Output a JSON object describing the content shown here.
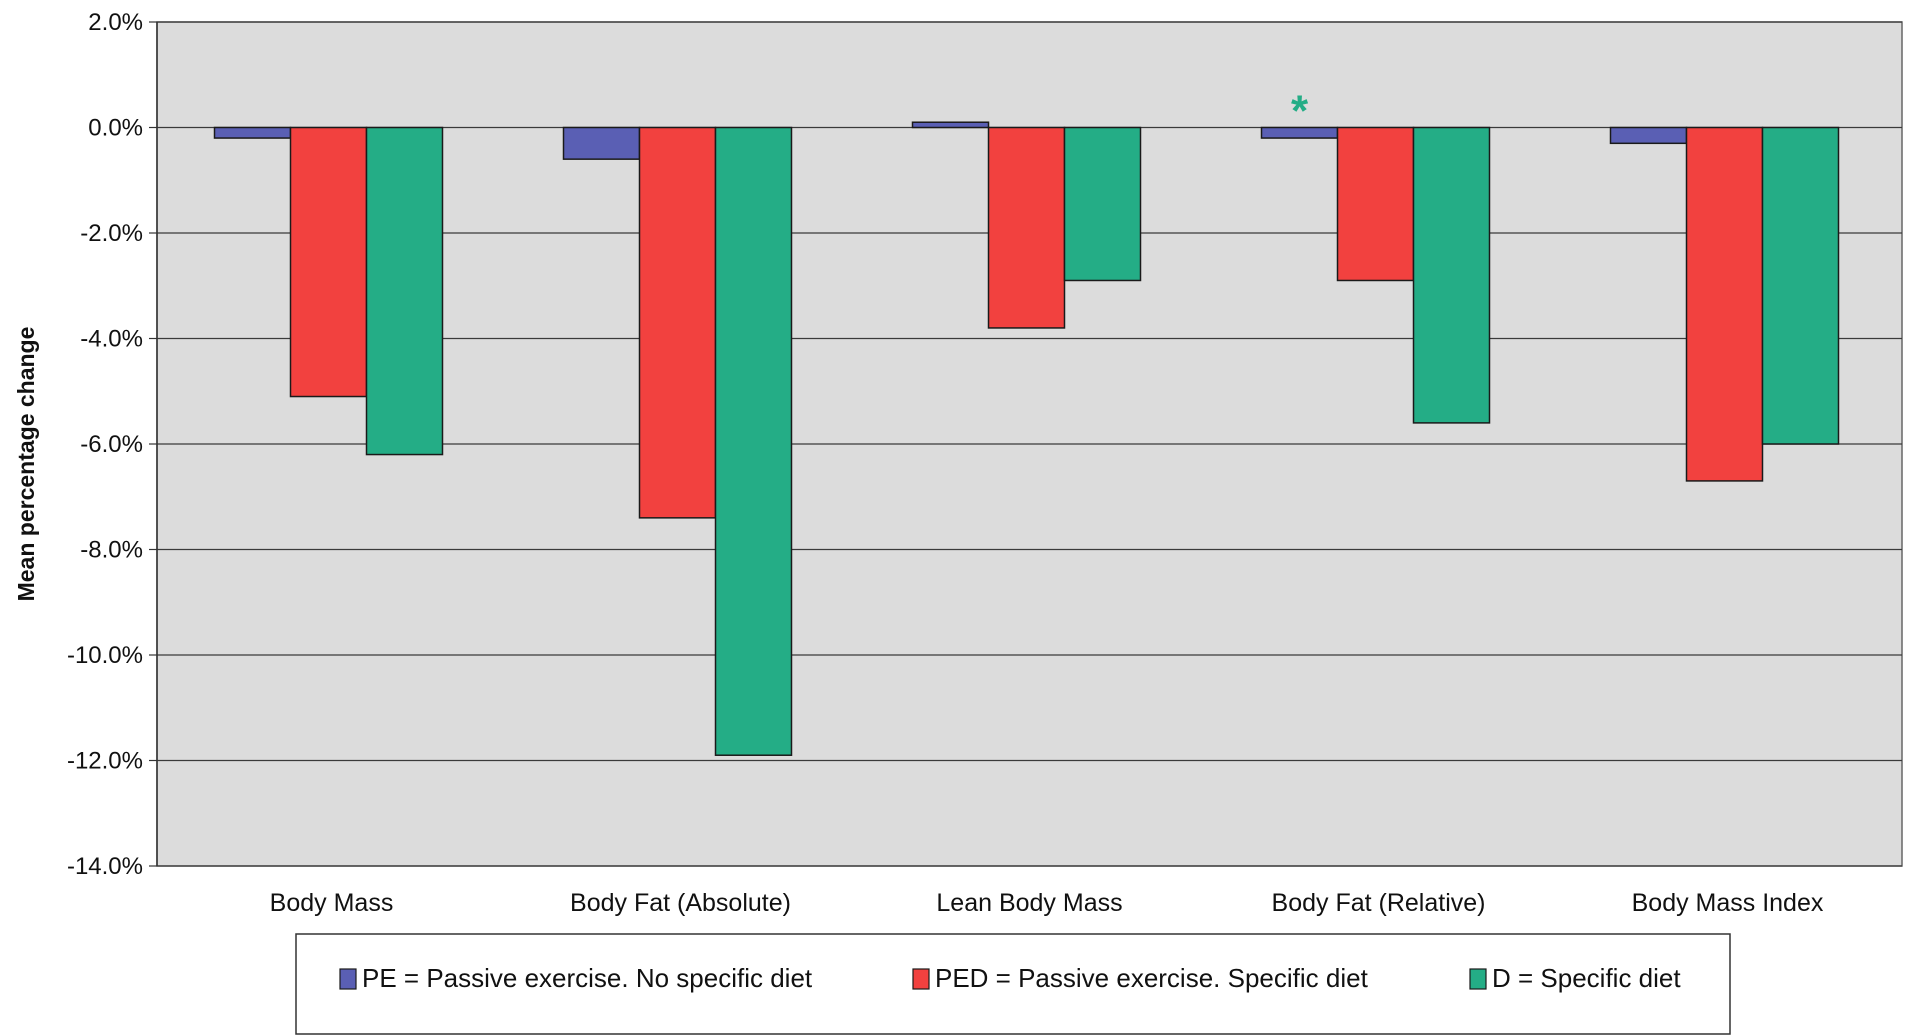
{
  "chart_data": {
    "type": "bar",
    "title": "",
    "xlabel": "",
    "ylabel": "Mean percentage change",
    "ylim": [
      -14,
      2
    ],
    "y_ticks": [
      "2.0%",
      "0.0%",
      "-2.0%",
      "-4.0%",
      "-6.0%",
      "-8.0%",
      "-10.0%",
      "-12.0%",
      "-14.0%"
    ],
    "y_tick_values": [
      2,
      0,
      -2,
      -4,
      -6,
      -8,
      -10,
      -12,
      -14
    ],
    "grid": true,
    "legend_position": "bottom",
    "categories": [
      "Body Mass",
      "Body Fat (Absolute)",
      "Lean Body Mass",
      "Body Fat (Relative)",
      "Body Mass Index"
    ],
    "series": [
      {
        "name": "PE = Passive exercise. No specific diet",
        "color": "#5a5fb4",
        "values": [
          -0.2,
          -0.6,
          0.1,
          -0.2,
          -0.3
        ]
      },
      {
        "name": "PED = Passive exercise. Specific diet",
        "color": "#f2413f",
        "values": [
          -5.1,
          -7.4,
          -3.8,
          -2.9,
          -6.7
        ]
      },
      {
        "name": "D = Specific diet",
        "color": "#24ad86",
        "values": [
          -6.2,
          -11.9,
          -2.9,
          -5.6,
          -6.0
        ]
      }
    ],
    "annotations": [
      {
        "text": "*",
        "category": "Body Fat (Relative)",
        "series": "PE = Passive exercise. No specific diet",
        "color": "#24ad86"
      }
    ],
    "plot_background": "#dcdcdc"
  }
}
